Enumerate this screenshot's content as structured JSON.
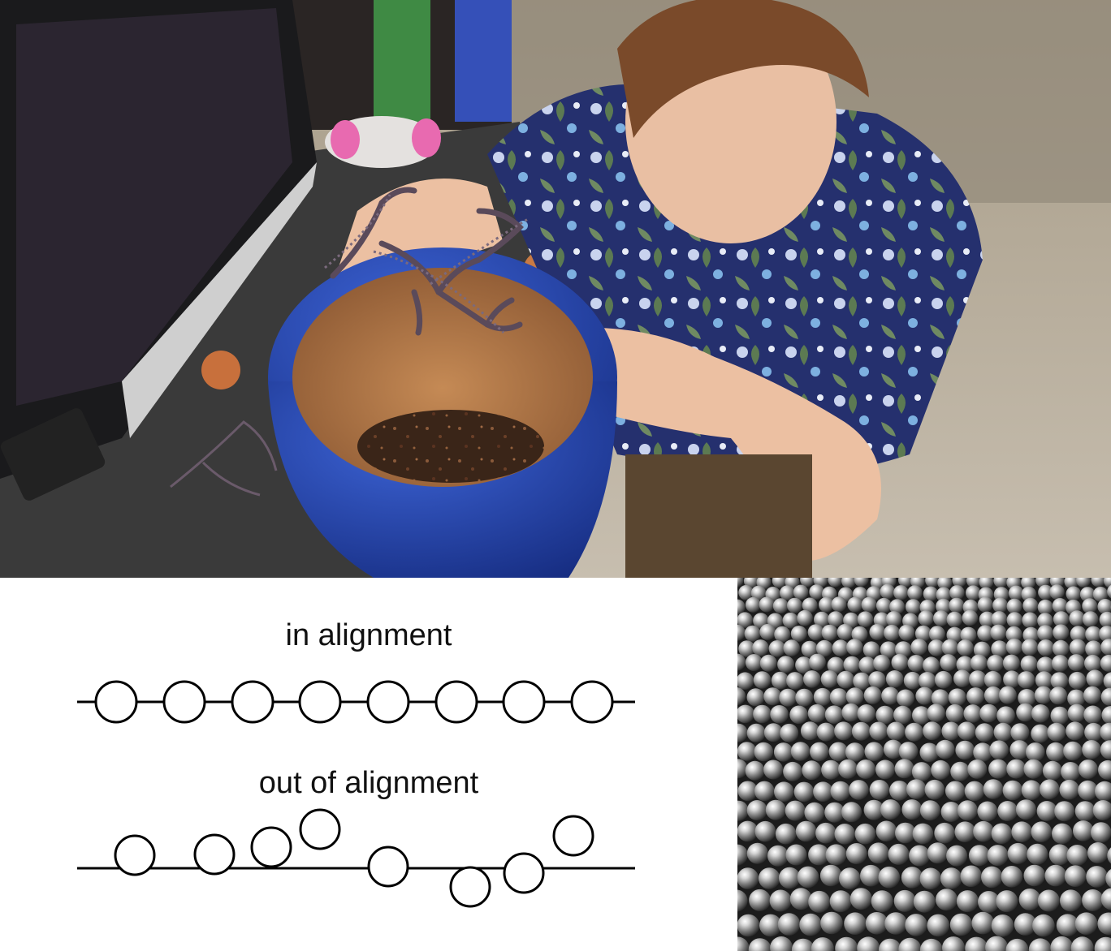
{
  "diagram": {
    "caption_in": "in alignment",
    "caption_out": "out of alignment",
    "aligned_ball_count": 8,
    "misaligned_ball_count": 8
  },
  "photo_top": {
    "subject": "person-inspecting-metal-tree-sculpture"
  },
  "photo_balls": {
    "subject": "steel-ball-bearings"
  },
  "colors": {
    "pot_blue": "#1f3fa8",
    "shirt_navy": "#23306e",
    "concrete": "#b3aa99",
    "steel": "#9a9a9a"
  }
}
